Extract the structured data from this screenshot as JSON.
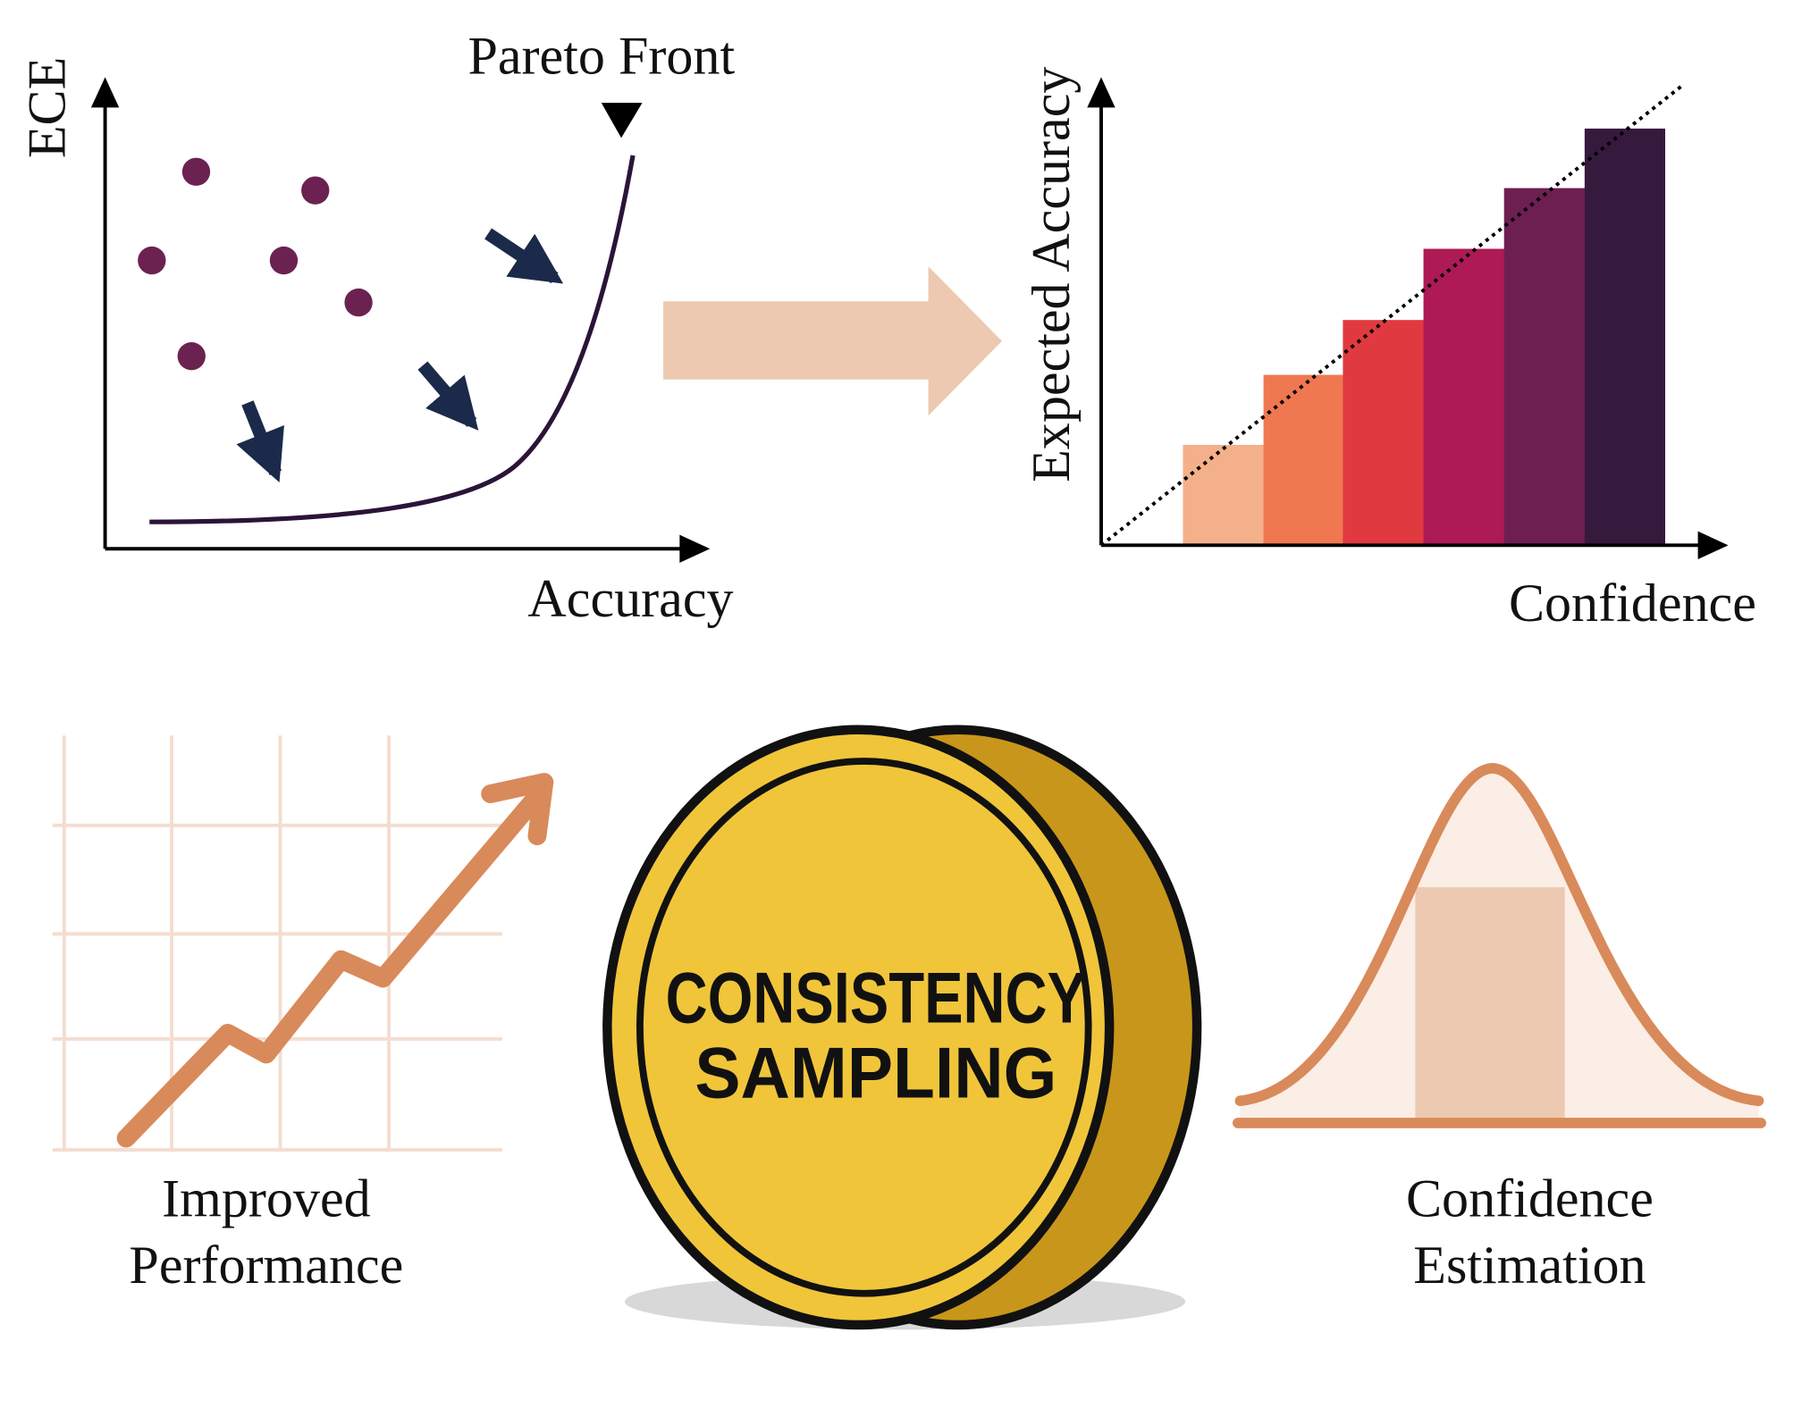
{
  "top_left": {
    "y_label": "ECE",
    "x_label": "Accuracy",
    "annotation": "Pareto Front"
  },
  "top_right": {
    "y_label": "Expected Accuracy",
    "x_label": "Confidence"
  },
  "bottom": {
    "left_caption": [
      "Improved",
      "Performance"
    ],
    "coin_text": [
      "CONSISTENCY",
      "SAMPLING"
    ],
    "right_caption": [
      "Confidence",
      "Estimation"
    ]
  }
}
